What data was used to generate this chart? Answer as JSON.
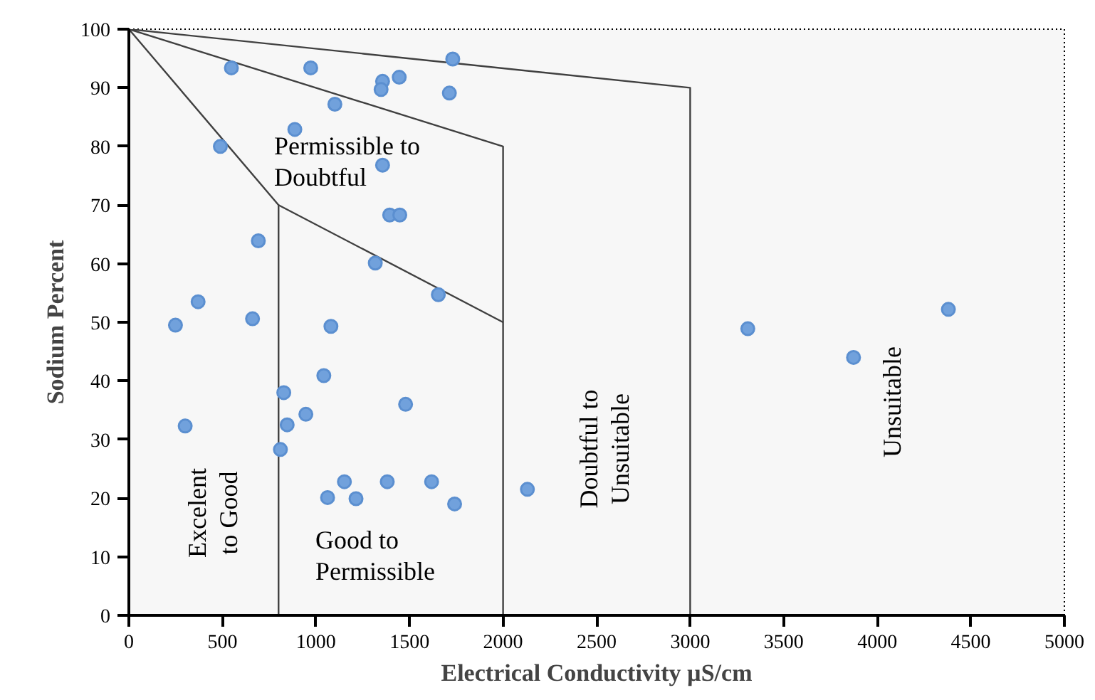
{
  "chart_data": {
    "type": "scatter",
    "xlabel": "Electrical Conductivity µS/cm",
    "ylabel": "Sodium Percent",
    "xlim": [
      0,
      5000
    ],
    "ylim": [
      0,
      100
    ],
    "xticks": [
      0,
      500,
      1000,
      1500,
      2000,
      2500,
      3000,
      3500,
      4000,
      4500,
      5000
    ],
    "yticks": [
      0,
      10,
      20,
      30,
      40,
      50,
      60,
      70,
      80,
      90,
      100
    ],
    "grid": false,
    "series": [
      {
        "type": "line",
        "color": "#404040",
        "x": [
          0,
          3000,
          3000
        ],
        "values": [
          100,
          90,
          0
        ]
      },
      {
        "type": "line",
        "color": "#404040",
        "x": [
          0,
          2000,
          2000
        ],
        "values": [
          100,
          80,
          0
        ]
      },
      {
        "type": "line",
        "color": "#404040",
        "x": [
          0,
          800,
          800
        ],
        "values": [
          100,
          70,
          0
        ]
      },
      {
        "type": "line",
        "color": "#404040",
        "x": [
          800,
          2000
        ],
        "values": [
          70,
          50
        ]
      },
      {
        "marker": "circle",
        "color": "#71a1dc",
        "x": [
          370,
          249,
          661,
          1080,
          1042,
          828,
          1479,
          946,
          846,
          301,
          810,
          1152,
          1381,
          1618,
          2130,
          1062,
          1214,
          1741,
          1654,
          548,
          972,
          1731,
          1356,
          1348,
          1445,
          1713,
          1101,
          887,
          489,
          1356,
          1394,
          1448,
          692,
          1317,
          3308,
          3873,
          4380
        ],
        "values": [
          53.5,
          49.5,
          50.6,
          49.3,
          40.9,
          38.0,
          36.0,
          34.3,
          32.5,
          32.3,
          28.3,
          22.8,
          22.8,
          22.8,
          21.5,
          20.1,
          19.9,
          19.0,
          54.7,
          93.4,
          93.4,
          94.9,
          91.1,
          89.7,
          91.8,
          89.1,
          87.2,
          82.9,
          80.0,
          76.8,
          68.3,
          68.3,
          63.9,
          60.1,
          48.9,
          44.0,
          52.2
        ]
      }
    ],
    "annotations": [
      "Permissible to\nDoubtful",
      "Excelent\nto Good",
      "Good to\nPermissible",
      "Doubtful to\nUnsuitable",
      "Unsuitable"
    ]
  }
}
